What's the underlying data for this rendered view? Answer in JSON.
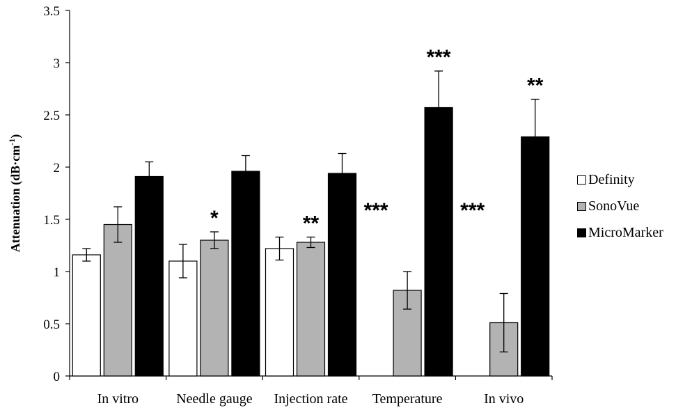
{
  "chart_data": {
    "type": "bar",
    "title": "",
    "xlabel": "",
    "ylabel": "Attenuation (dB·cm",
    "ylabel_sup": "-1",
    "ylabel_close": ")",
    "ylim": [
      0,
      3.5
    ],
    "yticks": [
      0,
      0.5,
      1,
      1.5,
      2,
      2.5,
      3,
      3.5
    ],
    "ytick_labels": [
      "0",
      "0.5",
      "1",
      "1.5",
      "2",
      "2.5",
      "3",
      "3.5"
    ],
    "categories": [
      "In vitro",
      "Needle gauge",
      "Injection rate",
      "Temperature",
      "In vivo"
    ],
    "series": [
      {
        "name": "Definity",
        "color": "#ffffff",
        "values": [
          1.16,
          1.1,
          1.22,
          0,
          0
        ],
        "errors": [
          0.06,
          0.16,
          0.11,
          0,
          0
        ],
        "sig": [
          "",
          "",
          "",
          "***",
          "***"
        ]
      },
      {
        "name": "SonoVue",
        "color": "#b3b3b3",
        "values": [
          1.45,
          1.3,
          1.28,
          0.82,
          0.51
        ],
        "errors": [
          0.17,
          0.08,
          0.05,
          0.18,
          0.28
        ],
        "sig": [
          "",
          "*",
          "**",
          "",
          ""
        ]
      },
      {
        "name": "MicroMarker",
        "color": "#000000",
        "values": [
          1.91,
          1.96,
          1.94,
          2.57,
          2.29
        ],
        "errors": [
          0.14,
          0.15,
          0.19,
          0.35,
          0.36
        ],
        "sig": [
          "",
          "",
          "",
          "***",
          "**"
        ]
      }
    ],
    "legend_position": "right",
    "grid": false
  }
}
